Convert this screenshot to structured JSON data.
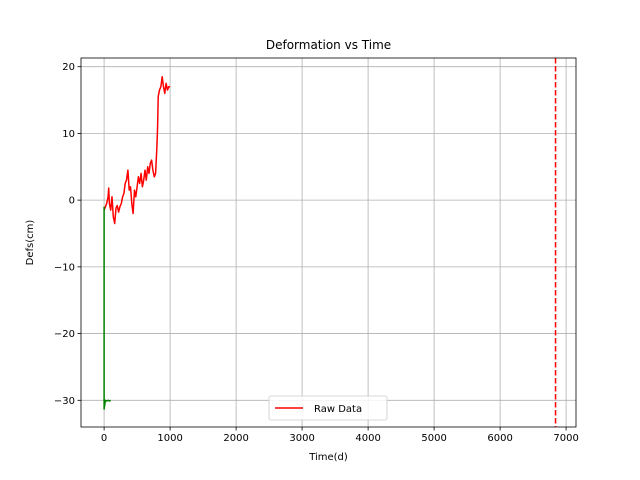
{
  "chart_data": {
    "type": "line",
    "title": "Deformation vs Time",
    "xlabel": "Time(d)",
    "ylabel": "Defs(cm)",
    "xlim": [
      -350,
      7150
    ],
    "ylim": [
      -34,
      21.3
    ],
    "xticks": [
      0,
      1000,
      2000,
      3000,
      4000,
      5000,
      6000,
      7000
    ],
    "xtick_labels": [
      "0",
      "1000",
      "2000",
      "3000",
      "4000",
      "5000",
      "6000",
      "7000"
    ],
    "yticks": [
      -30,
      -20,
      -10,
      0,
      10,
      20
    ],
    "ytick_labels": [
      "−30",
      "−20",
      "−10",
      "0",
      "10",
      "20"
    ],
    "grid": true,
    "legend": {
      "placement": "lower-center",
      "entries": [
        "Raw Data"
      ]
    },
    "series": [
      {
        "name": "Raw Data",
        "color": "#ff0000",
        "style": "solid",
        "x": [
          0,
          20,
          40,
          60,
          70,
          80,
          100,
          120,
          140,
          160,
          180,
          200,
          220,
          240,
          260,
          280,
          300,
          320,
          340,
          360,
          380,
          400,
          420,
          440,
          460,
          480,
          500,
          520,
          540,
          560,
          580,
          600,
          620,
          640,
          660,
          680,
          700,
          720,
          740,
          760,
          780,
          800,
          810,
          820,
          840,
          860,
          880,
          900,
          920,
          940,
          960,
          980,
          1000
        ],
        "y": [
          -1.5,
          -1.0,
          -0.5,
          0.5,
          1.8,
          -0.5,
          -1.5,
          0.5,
          -2.5,
          -3.5,
          -1.2,
          -0.8,
          -1.8,
          -1.0,
          -0.5,
          0.5,
          1.0,
          2.5,
          3.0,
          4.5,
          1.5,
          2.0,
          -0.5,
          -2.0,
          1.5,
          0.5,
          2.0,
          3.5,
          2.5,
          4.0,
          2.0,
          3.0,
          4.5,
          3.0,
          5.0,
          4.0,
          5.5,
          6.0,
          4.5,
          3.5,
          4.0,
          8.0,
          11.0,
          15.5,
          16.5,
          17.0,
          18.5,
          17.0,
          16.0,
          17.5,
          16.5,
          17.0,
          17.0
        ]
      },
      {
        "name": "",
        "color": "#008000",
        "style": "solid",
        "x": [
          0,
          0,
          0,
          0,
          0,
          0,
          20,
          40,
          60,
          80,
          100
        ],
        "y": [
          -1.0,
          -5.0,
          -15.0,
          -25.0,
          -30.5,
          -31.3,
          -30.0,
          -30.1,
          -30.0,
          -30.1,
          -30.0
        ]
      },
      {
        "name": "",
        "color": "#ff0000",
        "style": "dashed",
        "vline_x": 6840
      }
    ]
  }
}
